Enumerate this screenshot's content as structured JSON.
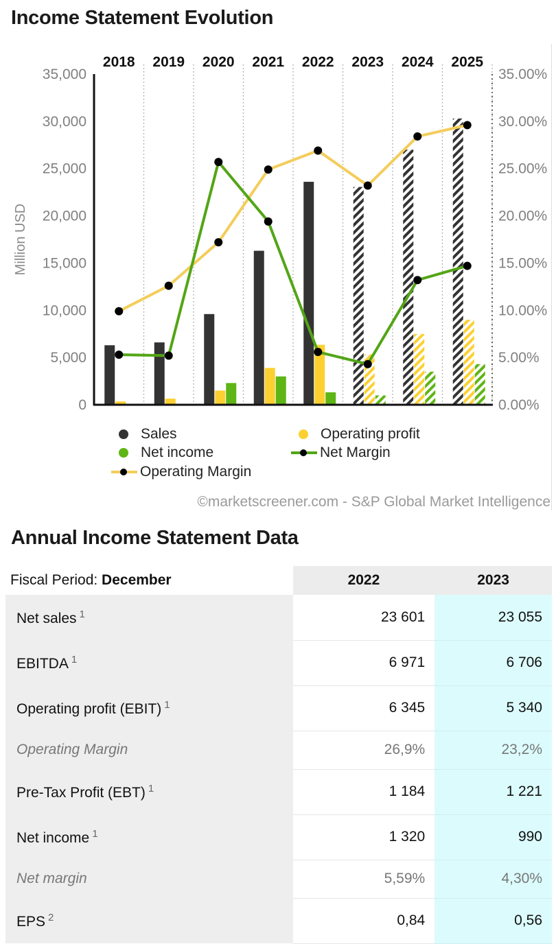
{
  "chart_title": "Income Statement Evolution",
  "table_title": "Annual Income Statement Data",
  "credit": "©marketscreener.com - S&P Global Market Intelligence",
  "colors": {
    "sales": "#333333",
    "operating_profit": "#fcd030",
    "net_income": "#5fb515",
    "net_margin_line": "#53a516",
    "operating_margin_line": "#f3cd5b",
    "estimate_pattern": "hatched"
  },
  "legend": {
    "sales": "Sales",
    "operating_profit": "Operating profit",
    "net_income": "Net income",
    "net_margin": "Net Margin",
    "operating_margin": "Operating Margin"
  },
  "chart_data": {
    "type": "bar",
    "categories": [
      "2018",
      "2019",
      "2020",
      "2021",
      "2022",
      "2023",
      "2024",
      "2025"
    ],
    "estimate_categories": [
      "2023",
      "2024",
      "2025"
    ],
    "ylabel": "Million USD",
    "ylim": [
      0,
      35000
    ],
    "y_ticks": [
      "0",
      "5,000",
      "10,000",
      "15,000",
      "20,000",
      "25,000",
      "30,000",
      "35,000"
    ],
    "y2lim": [
      0,
      35
    ],
    "y2_ticks": [
      "0.00%",
      "5.00%",
      "10.00%",
      "15.00%",
      "20.00%",
      "25.00%",
      "30.00%",
      "35.00%"
    ],
    "grid": "vertical-dotted",
    "series": [
      {
        "name": "Sales",
        "kind": "bar",
        "values": [
          6300,
          6600,
          9600,
          16300,
          23601,
          23055,
          27000,
          30300
        ]
      },
      {
        "name": "Operating profit",
        "kind": "bar",
        "values": [
          350,
          650,
          1500,
          3900,
          6345,
          5340,
          7500,
          9000
        ]
      },
      {
        "name": "Net income",
        "kind": "bar",
        "values": [
          null,
          null,
          2300,
          3000,
          1320,
          990,
          3500,
          4300
        ]
      },
      {
        "name": "Net Margin",
        "kind": "line",
        "axis": "right",
        "values": [
          5.3,
          5.2,
          25.7,
          19.4,
          5.59,
          4.3,
          13.2,
          14.7
        ]
      },
      {
        "name": "Operating Margin",
        "kind": "line",
        "axis": "right",
        "values": [
          9.9,
          12.6,
          17.2,
          24.9,
          26.9,
          23.2,
          28.4,
          29.6
        ]
      }
    ]
  },
  "table": {
    "fiscal_label": "Fiscal Period: ",
    "fiscal_value": "December",
    "years": [
      "2022",
      "2023"
    ],
    "rows": [
      {
        "label": "Net sales",
        "sup": "1",
        "v2022": "23 601",
        "v2023": "23 055"
      },
      {
        "label": "EBITDA",
        "sup": "1",
        "v2022": "6 971",
        "v2023": "6 706"
      },
      {
        "label": "Operating profit (EBIT)",
        "sup": "1",
        "v2022": "6 345",
        "v2023": "5 340"
      },
      {
        "label": "Operating Margin",
        "sup": "",
        "italic": true,
        "v2022": "26,9%",
        "v2023": "23,2%"
      },
      {
        "label": "Pre-Tax Profit (EBT)",
        "sup": "1",
        "v2022": "1 184",
        "v2023": "1 221"
      },
      {
        "label": "Net income",
        "sup": "1",
        "v2022": "1 320",
        "v2023": "990"
      },
      {
        "label": "Net margin",
        "sup": "",
        "italic": true,
        "v2022": "5,59%",
        "v2023": "4,30%"
      },
      {
        "label": "EPS",
        "sup": "2",
        "v2022": "0,84",
        "v2023": "0,56"
      }
    ]
  }
}
